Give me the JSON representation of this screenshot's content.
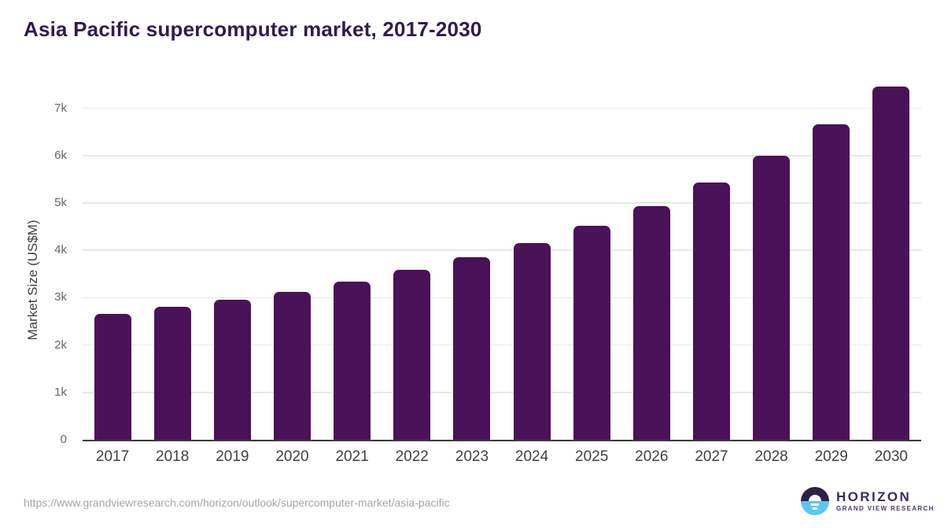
{
  "header": {
    "title": "Asia Pacific supercomputer market, 2017-2030"
  },
  "chart_data": {
    "type": "bar",
    "title": "Asia Pacific supercomputer market, 2017-2030",
    "categories": [
      "2017",
      "2018",
      "2019",
      "2020",
      "2021",
      "2022",
      "2023",
      "2024",
      "2025",
      "2026",
      "2027",
      "2028",
      "2029",
      "2030"
    ],
    "values": [
      2660,
      2810,
      2960,
      3120,
      3340,
      3580,
      3850,
      4160,
      4520,
      4940,
      5440,
      6000,
      6660,
      7460
    ],
    "xlabel": "",
    "ylabel": "Market Size (US$M)",
    "ylim": [
      0,
      7500
    ],
    "yticks": [
      {
        "label": "0",
        "value": 0
      },
      {
        "label": "1k",
        "value": 1000
      },
      {
        "label": "2k",
        "value": 2000
      },
      {
        "label": "3k",
        "value": 3000
      },
      {
        "label": "4k",
        "value": 4000
      },
      {
        "label": "5k",
        "value": 5000
      },
      {
        "label": "6k",
        "value": 6000
      },
      {
        "label": "7k",
        "value": 7000
      }
    ],
    "grid": true,
    "legend": null,
    "bar_color": "#4a1259"
  },
  "footer": {
    "source_url": "https://www.grandviewresearch.com/horizon/outlook/supercomputer-market/asia-pacific",
    "logo": {
      "name": "HORIZON",
      "subtitle": "GRAND VIEW RESEARCH",
      "icon": "horizon-sunrise-icon"
    }
  },
  "colors": {
    "bar": "#4a1259",
    "title_text": "#321a4e",
    "grid_line": "#e8e8e8",
    "axis_line": "#3c3c3c",
    "ytick_text": "#63666b",
    "xtick_text": "#3f4245",
    "axis_title_text": "#3f4245",
    "url_text": "#a5a5a5",
    "logo_dark": "#2e2143",
    "logo_blue": "#5bc6f1",
    "logo_text": "#3b2b5a",
    "logo_subtext": "#493a6b",
    "background": "#ffffff"
  }
}
